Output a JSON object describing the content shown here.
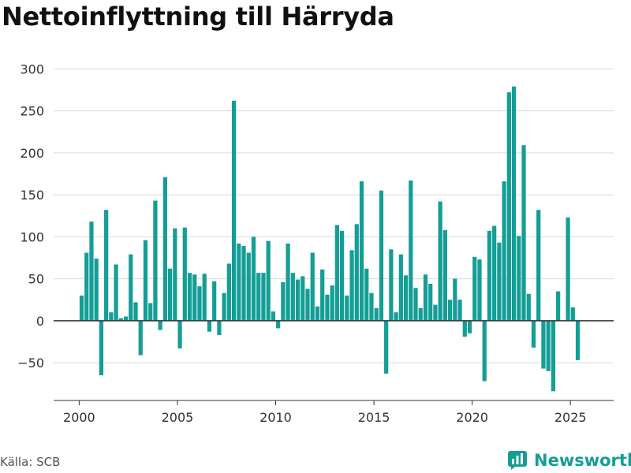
{
  "title": "Nettoinflyttning till Härryda",
  "source": "Källa: SCB",
  "brand": {
    "name": "Newsworthy",
    "icon": "newsworthy-logo-icon",
    "color": "#149e96"
  },
  "chart_data": {
    "type": "bar",
    "title": "Nettoinflyttning till Härryda",
    "xlabel": "",
    "ylabel": "",
    "bar_color": "#149e96",
    "grid": true,
    "ylim": [
      -95,
      305
    ],
    "y_ticks": [
      -50,
      0,
      50,
      100,
      150,
      200,
      250,
      300
    ],
    "y_tick_labels": [
      "−50",
      "0",
      "50",
      "100",
      "150",
      "200",
      "250",
      "300"
    ],
    "x_ticks": [
      2000,
      2005,
      2010,
      2015,
      2020,
      2025
    ],
    "x_tick_labels": [
      "2000",
      "2005",
      "2010",
      "2015",
      "2020",
      "2025"
    ],
    "x_range": [
      1998.7,
      2027.2
    ],
    "period": "quarter",
    "x_start": 2000.125,
    "values": [
      30,
      81,
      118,
      74,
      -65,
      132,
      10,
      67,
      3,
      5,
      79,
      22,
      -41,
      96,
      21,
      143,
      -11,
      171,
      62,
      110,
      -33,
      111,
      57,
      55,
      41,
      56,
      -13,
      47,
      -17,
      33,
      68,
      262,
      92,
      89,
      81,
      100,
      57,
      57,
      95,
      11,
      -9,
      46,
      92,
      57,
      49,
      53,
      38,
      81,
      17,
      61,
      31,
      42,
      114,
      107,
      30,
      84,
      115,
      166,
      62,
      33,
      15,
      155,
      -63,
      85,
      10,
      79,
      54,
      167,
      39,
      15,
      55,
      44,
      19,
      142,
      108,
      25,
      50,
      25,
      -19,
      -15,
      76,
      73,
      -72,
      107,
      113,
      93,
      166,
      272,
      279,
      101,
      209,
      32,
      -32,
      132,
      -57,
      -60,
      -84,
      35,
      0,
      123,
      16,
      -47
    ]
  }
}
